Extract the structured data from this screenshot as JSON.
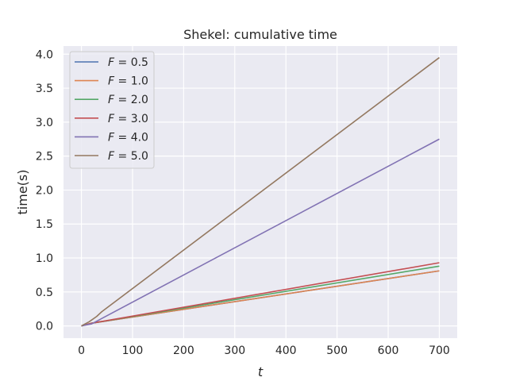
{
  "chart_data": {
    "type": "line",
    "title": "Shekel: cumulative time",
    "xlabel": "t",
    "ylabel": "time(s)",
    "xlim": [
      -35,
      735
    ],
    "ylim": [
      -0.18,
      4.12
    ],
    "xticks": [
      0,
      100,
      200,
      300,
      400,
      500,
      600,
      700
    ],
    "yticks": [
      0.0,
      0.5,
      1.0,
      1.5,
      2.0,
      2.5,
      3.0,
      3.5,
      4.0
    ],
    "xtick_labels": [
      "0",
      "100",
      "200",
      "300",
      "400",
      "500",
      "600",
      "700"
    ],
    "ytick_labels": [
      "0.0",
      "0.5",
      "1.0",
      "1.5",
      "2.0",
      "2.5",
      "3.0",
      "3.5",
      "4.0"
    ],
    "grid": true,
    "legend_position": "top-left",
    "series": [
      {
        "name": "F = 0.5",
        "color": "#4c72b0",
        "x": [
          0,
          20,
          700
        ],
        "y": [
          0,
          0.04,
          0.81
        ]
      },
      {
        "name": "F = 1.0",
        "color": "#dd8452",
        "x": [
          0,
          20,
          700
        ],
        "y": [
          0,
          0.04,
          0.81
        ]
      },
      {
        "name": "F = 2.0",
        "color": "#55a868",
        "x": [
          0,
          20,
          700
        ],
        "y": [
          0,
          0.04,
          0.88
        ]
      },
      {
        "name": "F = 3.0",
        "color": "#c44e52",
        "x": [
          0,
          20,
          700
        ],
        "y": [
          0,
          0.04,
          0.93
        ]
      },
      {
        "name": "F = 4.0",
        "color": "#8172b3",
        "x": [
          0,
          20,
          700
        ],
        "y": [
          0,
          0.03,
          2.75
        ]
      },
      {
        "name": "F = 5.0",
        "color": "#937860",
        "x": [
          0,
          15,
          30,
          40,
          700
        ],
        "y": [
          0,
          0.06,
          0.14,
          0.21,
          3.95
        ]
      }
    ]
  }
}
